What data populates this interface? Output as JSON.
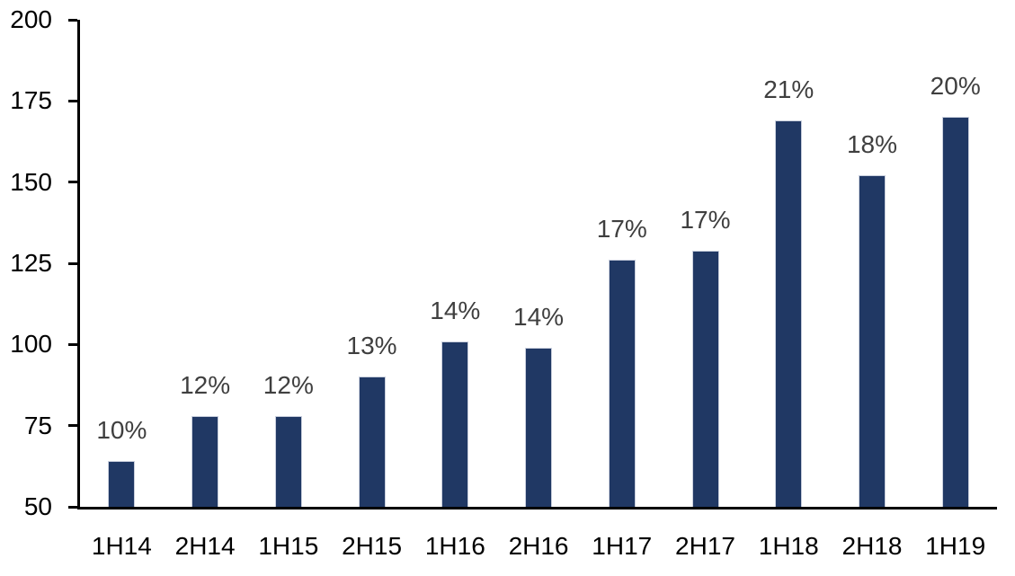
{
  "chart_data": {
    "type": "bar",
    "title": "",
    "xlabel": "",
    "ylabel": "",
    "categories": [
      "1H14",
      "2H14",
      "1H15",
      "2H15",
      "1H16",
      "2H16",
      "1H17",
      "2H17",
      "1H18",
      "2H18",
      "1H19"
    ],
    "values": [
      64,
      78,
      78,
      90,
      101,
      99,
      126,
      129,
      169,
      152,
      170
    ],
    "bar_labels": [
      "10%",
      "12%",
      "12%",
      "13%",
      "14%",
      "14%",
      "17%",
      "17%",
      "21%",
      "18%",
      "20%"
    ],
    "ylim": [
      50,
      200
    ],
    "yticks": [
      50,
      75,
      100,
      125,
      150,
      175,
      200
    ],
    "grid": false,
    "legend": false,
    "colors": {
      "bar_fill": "#203864",
      "bar_border": "#c9cfdd",
      "data_label": "#3f3f3f",
      "axis": "#000000",
      "background": "#ffffff"
    }
  }
}
